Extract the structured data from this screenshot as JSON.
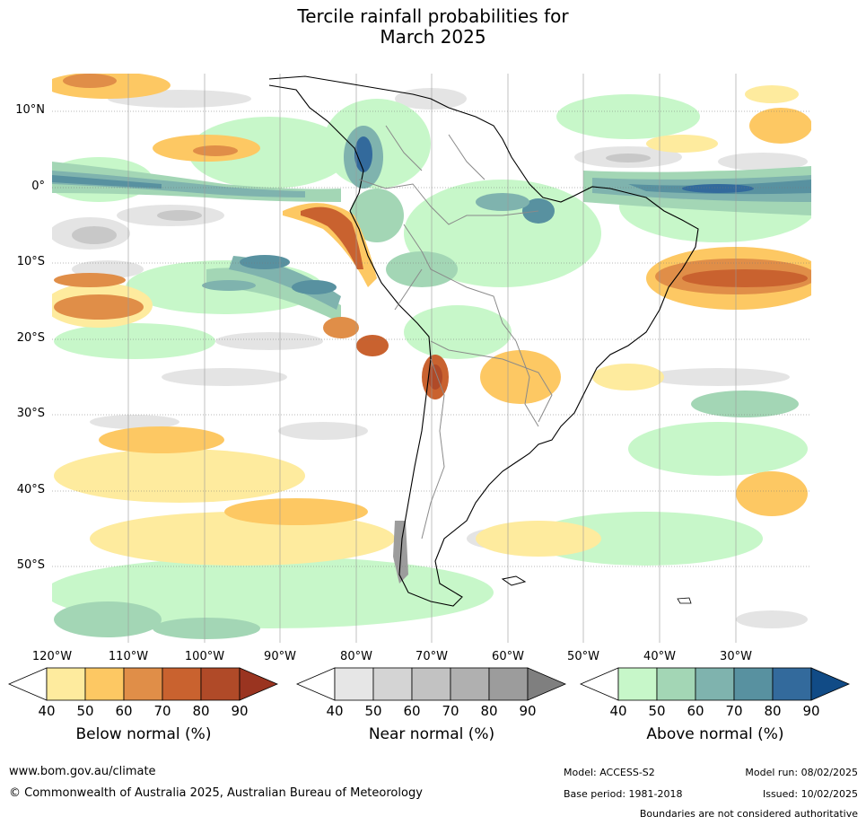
{
  "title": {
    "line1": "Tercile rainfall probabilities for",
    "line2": "March 2025"
  },
  "map": {
    "lat_labels": [
      "10°N",
      "0°",
      "10°S",
      "20°S",
      "30°S",
      "40°S",
      "50°S"
    ],
    "lon_labels": [
      "120°W",
      "110°W",
      "100°W",
      "90°W",
      "80°W",
      "70°W",
      "60°W",
      "50°W",
      "40°W",
      "30°W"
    ],
    "background": "#ffffff",
    "land_outline_color": "#000000",
    "border_color": "#8a8a8a"
  },
  "colorbars": [
    {
      "name": "below",
      "label": "Below normal (%)",
      "ticks": [
        "40",
        "50",
        "60",
        "70",
        "80",
        "90"
      ],
      "colors": [
        "#ffffff",
        "#feeb9e",
        "#fdc863",
        "#e08e48",
        "#c9622f",
        "#b04a28",
        "#9a3420"
      ]
    },
    {
      "name": "near",
      "label": "Near normal (%)",
      "ticks": [
        "40",
        "50",
        "60",
        "70",
        "80",
        "90"
      ],
      "colors": [
        "#ffffff",
        "#e6e6e6",
        "#d4d4d4",
        "#c2c2c2",
        "#b0b0b0",
        "#9c9c9c",
        "#7f7f7f"
      ]
    },
    {
      "name": "above",
      "label": "Above normal (%)",
      "ticks": [
        "40",
        "50",
        "60",
        "70",
        "80",
        "90"
      ],
      "colors": [
        "#ffffff",
        "#c7f7c9",
        "#a3d6b5",
        "#7fb3ae",
        "#5891a0",
        "#336a9c",
        "#114b86"
      ]
    }
  ],
  "footer": {
    "website": "www.bom.gov.au/climate",
    "copyright": "© Commonwealth of Australia 2025, Australian Bureau of Meteorology",
    "model": "Model: ACCESS-S2",
    "model_run": "Model run: 08/02/2025",
    "base_period": "Base period: 1981-2018",
    "issued": "Issued: 10/02/2025",
    "disclaimer": "Boundaries are not considered authoritative"
  }
}
